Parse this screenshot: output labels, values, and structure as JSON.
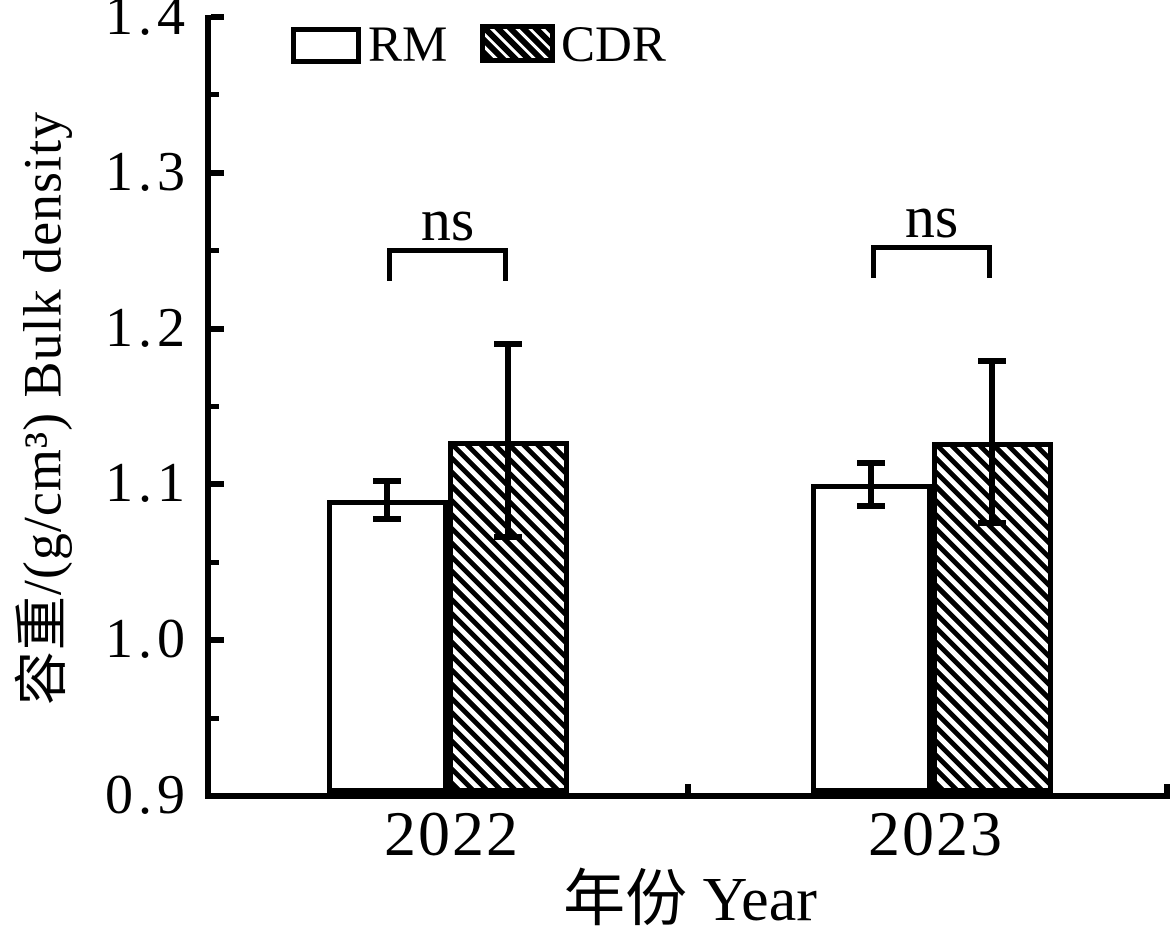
{
  "chart_data": {
    "type": "bar",
    "title": "",
    "categories": [
      "2022",
      "2023"
    ],
    "series": [
      {
        "name": "RM",
        "fill": "white",
        "values": [
          1.09,
          1.1
        ],
        "errors": [
          0.012,
          0.014
        ]
      },
      {
        "name": "CDR",
        "fill": "hatch",
        "values": [
          1.128,
          1.127
        ],
        "errors": [
          0.062,
          0.052
        ]
      }
    ],
    "xlabel": "年份 Year",
    "ylabel": "容重/(g/cm³) Bulk density",
    "ylim": [
      0.9,
      1.4
    ],
    "y_major_ticks": [
      1.4,
      1.3,
      1.2,
      1.1,
      1.0,
      0.9
    ],
    "y_tick_labels": [
      "1.4",
      "1.3",
      "1.2",
      "1.1",
      "1.0",
      "0.9"
    ],
    "y_minor_ticks": [
      1.35,
      1.25,
      1.15,
      1.05,
      0.95
    ],
    "grid": false,
    "legend_position": "top-inside",
    "annotations": [
      {
        "text": "ns",
        "category": "2022"
      },
      {
        "text": "ns",
        "category": "2023"
      }
    ],
    "colors": {
      "foreground": "#000000",
      "background": "#ffffff"
    }
  }
}
